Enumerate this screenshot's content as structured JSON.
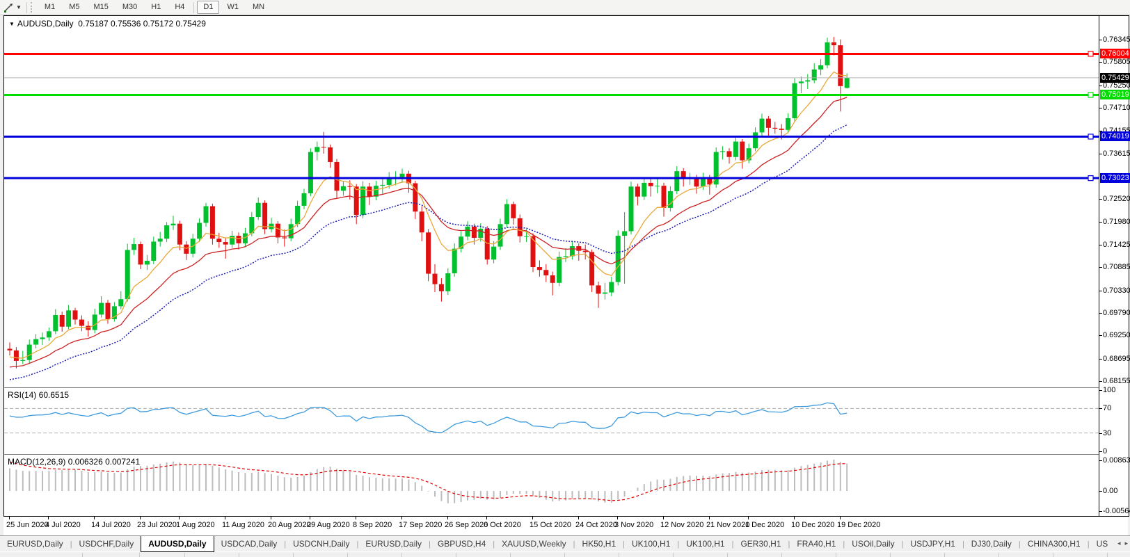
{
  "ui": {
    "toolbar": {
      "timeframes": [
        "M1",
        "M5",
        "M15",
        "M30",
        "H1",
        "H4",
        "D1",
        "W1",
        "MN"
      ],
      "active": "D1"
    },
    "chart_title": {
      "symbol": "AUDUSD,Daily",
      "open": "0.75187",
      "high": "0.75536",
      "low": "0.75172",
      "close": "0.75429"
    },
    "rsi_label": "RSI(14) 60.6515",
    "macd_label": "MACD(12,26,9) 0.006326 0.007241",
    "tabs": {
      "items": [
        "EURUSD,Daily",
        "USDCHF,Daily",
        "AUDUSD,Daily",
        "USDCAD,Daily",
        "USDCNH,Daily",
        "EURUSD,Daily",
        "GBPUSD,H4",
        "XAUUSD,Weekly",
        "HK50,H1",
        "UK100,H1",
        "UK100,H1",
        "GER30,H1",
        "FRA40,H1",
        "USOil,Daily",
        "USDJPY,H1",
        "DJ30,Daily",
        "CHINA300,H1",
        "US"
      ],
      "active_index": 2,
      "scroll_left": "◂",
      "scroll_right": "▸"
    }
  },
  "chart_data": {
    "type": "candlestick",
    "symbol": "AUDUSD",
    "timeframe": "Daily",
    "price_axis_range": [
      0.68155,
      0.76345
    ],
    "price_axis_labels": [
      "0.76345",
      "0.75805",
      "0.75250",
      "0.74710",
      "0.74155",
      "0.73615",
      "0.72520",
      "0.71980",
      "0.71425",
      "0.70885",
      "0.70330",
      "0.69790",
      "0.69250",
      "0.68695",
      "0.68155"
    ],
    "h_lines": [
      {
        "price": 0.76004,
        "label": "0.76004",
        "color": "#ff0000"
      },
      {
        "price": 0.75019,
        "label": "0.75019",
        "color": "#00dc00"
      },
      {
        "price": 0.74019,
        "label": "0.74019",
        "color": "#0000dc"
      },
      {
        "price": 0.73023,
        "label": "0.73023",
        "color": "#0000dc"
      }
    ],
    "current_price": {
      "value": 0.75429,
      "label": "0.75429"
    },
    "date_labels": [
      {
        "label": "25 Jun 2020",
        "i": 0
      },
      {
        "label": "4 Jul 2020",
        "i": 6
      },
      {
        "label": "14 Jul 2020",
        "i": 13
      },
      {
        "label": "23 Jul 2020",
        "i": 20
      },
      {
        "label": "1 Aug 2020",
        "i": 26
      },
      {
        "label": "11 Aug 2020",
        "i": 33
      },
      {
        "label": "20 Aug 2020",
        "i": 40
      },
      {
        "label": "29 Aug 2020",
        "i": 46
      },
      {
        "label": "8 Sep 2020",
        "i": 53
      },
      {
        "label": "17 Sep 2020",
        "i": 60
      },
      {
        "label": "26 Sep 2020",
        "i": 67
      },
      {
        "label": "6 Oct 2020",
        "i": 73
      },
      {
        "label": "15 Oct 2020",
        "i": 80
      },
      {
        "label": "24 Oct 2020",
        "i": 87
      },
      {
        "label": "3 Nov 2020",
        "i": 93
      },
      {
        "label": "12 Nov 2020",
        "i": 100
      },
      {
        "label": "21 Nov 2020",
        "i": 107
      },
      {
        "label": "1 Dec 2020",
        "i": 113
      },
      {
        "label": "10 Dec 2020",
        "i": 120
      },
      {
        "label": "19 Dec 2020",
        "i": 127
      }
    ],
    "candles": [
      [
        0.6893,
        0.6908,
        0.6877,
        0.6889
      ],
      [
        0.6889,
        0.6897,
        0.6846,
        0.6864
      ],
      [
        0.6864,
        0.6888,
        0.6856,
        0.6866
      ],
      [
        0.6866,
        0.6915,
        0.6859,
        0.6903
      ],
      [
        0.6903,
        0.6928,
        0.6894,
        0.6916
      ],
      [
        0.6916,
        0.6932,
        0.6902,
        0.692
      ],
      [
        0.692,
        0.6944,
        0.6912,
        0.6935
      ],
      [
        0.6935,
        0.6988,
        0.6928,
        0.6974
      ],
      [
        0.6974,
        0.6982,
        0.6934,
        0.6946
      ],
      [
        0.6946,
        0.6998,
        0.694,
        0.6985
      ],
      [
        0.6985,
        0.6991,
        0.6951,
        0.6963
      ],
      [
        0.6963,
        0.6973,
        0.6935,
        0.6948
      ],
      [
        0.6948,
        0.6959,
        0.6922,
        0.6938
      ],
      [
        0.6938,
        0.6989,
        0.693,
        0.6975
      ],
      [
        0.6975,
        0.7019,
        0.6968,
        0.7003
      ],
      [
        0.7003,
        0.701,
        0.6953,
        0.6964
      ],
      [
        0.6964,
        0.7005,
        0.6958,
        0.6995
      ],
      [
        0.6995,
        0.7031,
        0.6988,
        0.7012
      ],
      [
        0.7012,
        0.7145,
        0.7006,
        0.713
      ],
      [
        0.713,
        0.7159,
        0.7118,
        0.7144
      ],
      [
        0.7144,
        0.715,
        0.7084,
        0.7095
      ],
      [
        0.7095,
        0.7118,
        0.7082,
        0.7104
      ],
      [
        0.7104,
        0.7162,
        0.7096,
        0.715
      ],
      [
        0.715,
        0.7173,
        0.7138,
        0.7157
      ],
      [
        0.7157,
        0.7197,
        0.7149,
        0.7189
      ],
      [
        0.7189,
        0.7212,
        0.7178,
        0.7193
      ],
      [
        0.7193,
        0.72,
        0.7129,
        0.7143
      ],
      [
        0.7143,
        0.7151,
        0.7106,
        0.7121
      ],
      [
        0.7121,
        0.7169,
        0.7112,
        0.7157
      ],
      [
        0.7157,
        0.7206,
        0.7149,
        0.7195
      ],
      [
        0.7195,
        0.7243,
        0.7186,
        0.7235
      ],
      [
        0.7235,
        0.7241,
        0.7143,
        0.7157
      ],
      [
        0.7157,
        0.7171,
        0.7135,
        0.7149
      ],
      [
        0.7149,
        0.716,
        0.7109,
        0.7143
      ],
      [
        0.7143,
        0.7176,
        0.7135,
        0.7164
      ],
      [
        0.7164,
        0.7172,
        0.7131,
        0.7146
      ],
      [
        0.7146,
        0.7183,
        0.7139,
        0.717
      ],
      [
        0.717,
        0.7221,
        0.7163,
        0.7209
      ],
      [
        0.7209,
        0.7256,
        0.7202,
        0.7243
      ],
      [
        0.7243,
        0.7249,
        0.7168,
        0.718
      ],
      [
        0.718,
        0.7207,
        0.7172,
        0.7193
      ],
      [
        0.7193,
        0.7199,
        0.7146,
        0.716
      ],
      [
        0.716,
        0.7179,
        0.7138,
        0.7158
      ],
      [
        0.7158,
        0.7205,
        0.7151,
        0.7192
      ],
      [
        0.7192,
        0.7248,
        0.7185,
        0.7236
      ],
      [
        0.7236,
        0.7277,
        0.7228,
        0.7266
      ],
      [
        0.7266,
        0.7374,
        0.7259,
        0.7365
      ],
      [
        0.7365,
        0.739,
        0.7345,
        0.7377
      ],
      [
        0.7377,
        0.7413,
        0.7361,
        0.7376
      ],
      [
        0.7376,
        0.7383,
        0.7327,
        0.7341
      ],
      [
        0.7341,
        0.7348,
        0.7254,
        0.7272
      ],
      [
        0.7272,
        0.7296,
        0.726,
        0.7283
      ],
      [
        0.7283,
        0.7297,
        0.7251,
        0.7282
      ],
      [
        0.7282,
        0.7288,
        0.7192,
        0.7214
      ],
      [
        0.7214,
        0.7295,
        0.7206,
        0.7282
      ],
      [
        0.7282,
        0.7291,
        0.7238,
        0.7258
      ],
      [
        0.7258,
        0.7296,
        0.7249,
        0.7284
      ],
      [
        0.7284,
        0.7302,
        0.7264,
        0.7286
      ],
      [
        0.7286,
        0.7317,
        0.7277,
        0.7301
      ],
      [
        0.7301,
        0.7319,
        0.7285,
        0.7305
      ],
      [
        0.7305,
        0.7325,
        0.7291,
        0.7313
      ],
      [
        0.7313,
        0.732,
        0.7267,
        0.729
      ],
      [
        0.729,
        0.7296,
        0.7204,
        0.7222
      ],
      [
        0.7222,
        0.7235,
        0.7151,
        0.7172
      ],
      [
        0.7172,
        0.718,
        0.7055,
        0.7073
      ],
      [
        0.7073,
        0.7096,
        0.7029,
        0.7048
      ],
      [
        0.7048,
        0.7062,
        0.7006,
        0.7031
      ],
      [
        0.7031,
        0.7086,
        0.7022,
        0.7074
      ],
      [
        0.7074,
        0.7146,
        0.7066,
        0.7133
      ],
      [
        0.7133,
        0.7175,
        0.7124,
        0.7162
      ],
      [
        0.7162,
        0.7199,
        0.7153,
        0.7186
      ],
      [
        0.7186,
        0.7193,
        0.7143,
        0.7159
      ],
      [
        0.7159,
        0.7194,
        0.715,
        0.7181
      ],
      [
        0.7181,
        0.7187,
        0.7095,
        0.7107
      ],
      [
        0.7107,
        0.7151,
        0.7098,
        0.7138
      ],
      [
        0.7138,
        0.7205,
        0.713,
        0.7192
      ],
      [
        0.7192,
        0.7252,
        0.7184,
        0.724
      ],
      [
        0.724,
        0.7246,
        0.7191,
        0.7206
      ],
      [
        0.7206,
        0.7215,
        0.7148,
        0.7163
      ],
      [
        0.7163,
        0.718,
        0.7149,
        0.7163
      ],
      [
        0.7163,
        0.717,
        0.7077,
        0.7089
      ],
      [
        0.7089,
        0.7105,
        0.7066,
        0.7082
      ],
      [
        0.7082,
        0.7096,
        0.7053,
        0.7069
      ],
      [
        0.7069,
        0.7078,
        0.7021,
        0.7051
      ],
      [
        0.7051,
        0.7126,
        0.7043,
        0.7113
      ],
      [
        0.7113,
        0.7134,
        0.7101,
        0.7115
      ],
      [
        0.7115,
        0.7152,
        0.7107,
        0.7139
      ],
      [
        0.7139,
        0.7146,
        0.7104,
        0.7128
      ],
      [
        0.7128,
        0.7143,
        0.7107,
        0.7125
      ],
      [
        0.7125,
        0.7131,
        0.7029,
        0.7045
      ],
      [
        0.7045,
        0.7054,
        0.6991,
        0.7025
      ],
      [
        0.7025,
        0.7051,
        0.7011,
        0.7028
      ],
      [
        0.7028,
        0.7066,
        0.7019,
        0.7053
      ],
      [
        0.7053,
        0.7177,
        0.7045,
        0.7164
      ],
      [
        0.7164,
        0.7221,
        0.7049,
        0.7175
      ],
      [
        0.7175,
        0.7294,
        0.7167,
        0.7282
      ],
      [
        0.7282,
        0.7289,
        0.7237,
        0.7258
      ],
      [
        0.7258,
        0.7303,
        0.725,
        0.7291
      ],
      [
        0.7291,
        0.73,
        0.7258,
        0.7283
      ],
      [
        0.7283,
        0.7302,
        0.7266,
        0.7284
      ],
      [
        0.7284,
        0.7291,
        0.721,
        0.7231
      ],
      [
        0.7231,
        0.7283,
        0.7222,
        0.7271
      ],
      [
        0.7271,
        0.7331,
        0.7264,
        0.7319
      ],
      [
        0.7319,
        0.7326,
        0.7282,
        0.73
      ],
      [
        0.73,
        0.7315,
        0.7286,
        0.7303
      ],
      [
        0.7303,
        0.731,
        0.7265,
        0.7282
      ],
      [
        0.7282,
        0.7315,
        0.7274,
        0.7303
      ],
      [
        0.7303,
        0.731,
        0.7263,
        0.7287
      ],
      [
        0.7287,
        0.7376,
        0.7279,
        0.7365
      ],
      [
        0.7365,
        0.7379,
        0.7347,
        0.7367
      ],
      [
        0.7367,
        0.7374,
        0.7337,
        0.7353
      ],
      [
        0.7353,
        0.7402,
        0.7345,
        0.739
      ],
      [
        0.739,
        0.7396,
        0.7325,
        0.7345
      ],
      [
        0.7345,
        0.7385,
        0.7338,
        0.7374
      ],
      [
        0.7374,
        0.7424,
        0.7367,
        0.7412
      ],
      [
        0.7412,
        0.7457,
        0.7404,
        0.7445
      ],
      [
        0.7445,
        0.7451,
        0.7401,
        0.7423
      ],
      [
        0.7423,
        0.7437,
        0.7409,
        0.7421
      ],
      [
        0.7421,
        0.7432,
        0.7395,
        0.7418
      ],
      [
        0.7418,
        0.7458,
        0.741,
        0.7446
      ],
      [
        0.7446,
        0.7542,
        0.7439,
        0.753
      ],
      [
        0.753,
        0.7546,
        0.7506,
        0.7534
      ],
      [
        0.7534,
        0.7552,
        0.7516,
        0.7537
      ],
      [
        0.7537,
        0.7578,
        0.753,
        0.7563
      ],
      [
        0.7563,
        0.7588,
        0.7549,
        0.7573
      ],
      [
        0.7573,
        0.7639,
        0.7566,
        0.7628
      ],
      [
        0.7628,
        0.7641,
        0.7597,
        0.7621
      ],
      [
        0.7621,
        0.7635,
        0.7462,
        0.7523
      ],
      [
        0.75187,
        0.75536,
        0.75172,
        0.75429
      ]
    ],
    "indicators": {
      "ma_fast_period": 8,
      "ma_mid_period": 17,
      "ma_slow_period": 30,
      "rsi": {
        "label": "RSI(14) 60.6515",
        "axis": [
          "100",
          "70",
          "30",
          "0"
        ],
        "levels": [
          70,
          30
        ]
      },
      "macd": {
        "label": "MACD(12,26,9) 0.006326 0.007241",
        "axis": [
          {
            "label": "0.008633",
            "v": 0.008633
          },
          {
            "label": "0.00",
            "v": 0
          },
          {
            "label": "-0.005641",
            "v": -0.005641
          }
        ]
      }
    },
    "colors": {
      "bull": "#00c02e",
      "bear": "#e01010",
      "ma_fast": "#e8a838",
      "ma_mid": "#cc2222",
      "ma_slow": "#1c1cb4",
      "rsi_line": "#3e9bde",
      "rsi_level": "#b0b0b0",
      "macd_hist": "#bdbdbd",
      "macd_signal": "#e00000",
      "current_price_line": "#b4b4b4",
      "current_price_badge": "#000000"
    }
  }
}
